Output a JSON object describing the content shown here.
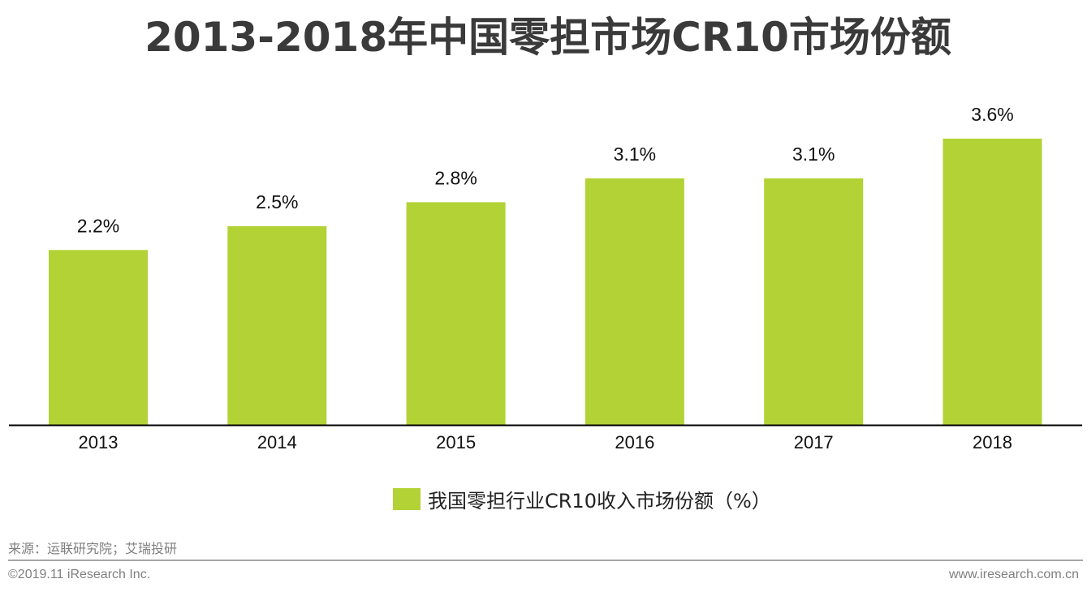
{
  "title": "2013-2018年中国零担市场CR10市场份额",
  "chart_data": {
    "type": "bar",
    "categories": [
      "2013",
      "2014",
      "2015",
      "2016",
      "2017",
      "2018"
    ],
    "series": [
      {
        "name": "我国零担行业CR10收入市场份额（%）",
        "values": [
          2.2,
          2.5,
          2.8,
          3.1,
          3.1,
          3.6
        ],
        "labels": [
          "2.2%",
          "2.5%",
          "2.8%",
          "3.1%",
          "3.1%",
          "3.6%"
        ],
        "color": "#b2d235"
      }
    ],
    "ylim": [
      0,
      3.6
    ],
    "grid": false,
    "legend_position": "bottom"
  },
  "legend": {
    "label": "我国零担行业CR10收入市场份额（%）",
    "color": "#b2d235"
  },
  "footer": {
    "source": "来源：运联研究院；艾瑞投研",
    "copyright": "©2019.11 iResearch Inc.",
    "website": "www.iresearch.com.cn"
  }
}
